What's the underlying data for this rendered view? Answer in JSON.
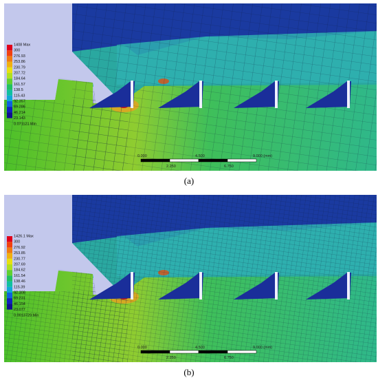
{
  "panels": [
    {
      "label": "(a)",
      "legend": [
        "1408 Max",
        "300",
        "276.93",
        "253.86",
        "230.79",
        "207.72",
        "184.64",
        "161.57",
        "138.5",
        "115.43",
        "92.357",
        "69.286",
        "46.214",
        "23.143",
        "0.071121 Min"
      ],
      "scale_top": [
        "0.000",
        "4.500",
        "9.000 (mm)"
      ],
      "scale_bottom": [
        "2.250",
        "6.750"
      ]
    },
    {
      "label": "(b)",
      "legend": [
        "1426.1 Max",
        "300",
        "276.92",
        "253.85",
        "230.77",
        "207.69",
        "184.62",
        "161.54",
        "138.46",
        "115.39",
        "92.308",
        "69.231",
        "46.154",
        "23.077",
        "0.0013729 Min"
      ],
      "scale_top": [
        "0.000",
        "4.500",
        "9.000 (mm)"
      ],
      "scale_bottom": [
        "2.250",
        "6.750"
      ]
    }
  ]
}
